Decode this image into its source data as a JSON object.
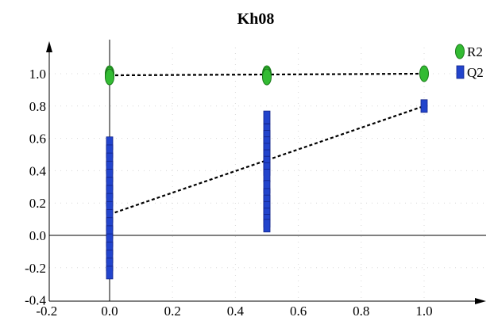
{
  "chart_data": {
    "type": "scatter",
    "title": "Kh08",
    "xlabel": "",
    "ylabel": "",
    "xlim": [
      -0.2,
      1.2
    ],
    "ylim": [
      -0.4,
      1.2
    ],
    "x_ticks": [
      "-0.2",
      "0.0",
      "0.2",
      "0.4",
      "0.6",
      "0.8",
      "1.0"
    ],
    "y_ticks": [
      "-0.4",
      "-0.2",
      "0.0",
      "0.2",
      "0.4",
      "0.6",
      "0.8",
      "1.0"
    ],
    "grid": "dotted",
    "legend": "top-right",
    "series": [
      {
        "name": "R2",
        "marker": "ellipse",
        "color": "#33bb33",
        "points": [
          {
            "x": 0.0,
            "y": 1.0
          },
          {
            "x": 0.0,
            "y": 0.99
          },
          {
            "x": 0.0,
            "y": 0.98
          },
          {
            "x": 0.5,
            "y": 1.0
          },
          {
            "x": 0.5,
            "y": 0.99
          },
          {
            "x": 0.5,
            "y": 0.98
          },
          {
            "x": 1.0,
            "y": 1.0
          }
        ],
        "trendline": {
          "x": [
            0.0,
            1.0
          ],
          "y": [
            0.99,
            1.0
          ]
        }
      },
      {
        "name": "Q2",
        "marker": "square",
        "color": "#2244cc",
        "points": [
          {
            "x": 0.0,
            "y": 0.57
          },
          {
            "x": 0.0,
            "y": 0.52
          },
          {
            "x": 0.0,
            "y": 0.47
          },
          {
            "x": 0.0,
            "y": 0.42
          },
          {
            "x": 0.0,
            "y": 0.37
          },
          {
            "x": 0.0,
            "y": 0.32
          },
          {
            "x": 0.0,
            "y": 0.27
          },
          {
            "x": 0.0,
            "y": 0.22
          },
          {
            "x": 0.0,
            "y": 0.17
          },
          {
            "x": 0.0,
            "y": 0.12
          },
          {
            "x": 0.0,
            "y": 0.07
          },
          {
            "x": 0.0,
            "y": 0.02
          },
          {
            "x": 0.0,
            "y": -0.03
          },
          {
            "x": 0.0,
            "y": -0.08
          },
          {
            "x": 0.0,
            "y": -0.13
          },
          {
            "x": 0.0,
            "y": -0.18
          },
          {
            "x": 0.0,
            "y": -0.23
          },
          {
            "x": 0.5,
            "y": 0.73
          },
          {
            "x": 0.5,
            "y": 0.65
          },
          {
            "x": 0.5,
            "y": 0.61
          },
          {
            "x": 0.5,
            "y": 0.57
          },
          {
            "x": 0.5,
            "y": 0.53
          },
          {
            "x": 0.5,
            "y": 0.49
          },
          {
            "x": 0.5,
            "y": 0.45
          },
          {
            "x": 0.5,
            "y": 0.41
          },
          {
            "x": 0.5,
            "y": 0.37
          },
          {
            "x": 0.5,
            "y": 0.3
          },
          {
            "x": 0.5,
            "y": 0.25
          },
          {
            "x": 0.5,
            "y": 0.21
          },
          {
            "x": 0.5,
            "y": 0.17
          },
          {
            "x": 0.5,
            "y": 0.13
          },
          {
            "x": 0.5,
            "y": 0.09
          },
          {
            "x": 0.5,
            "y": 0.06
          },
          {
            "x": 1.0,
            "y": 0.8
          }
        ],
        "trendline": {
          "x": [
            0.0,
            1.0
          ],
          "y": [
            0.13,
            0.8
          ]
        }
      }
    ]
  }
}
